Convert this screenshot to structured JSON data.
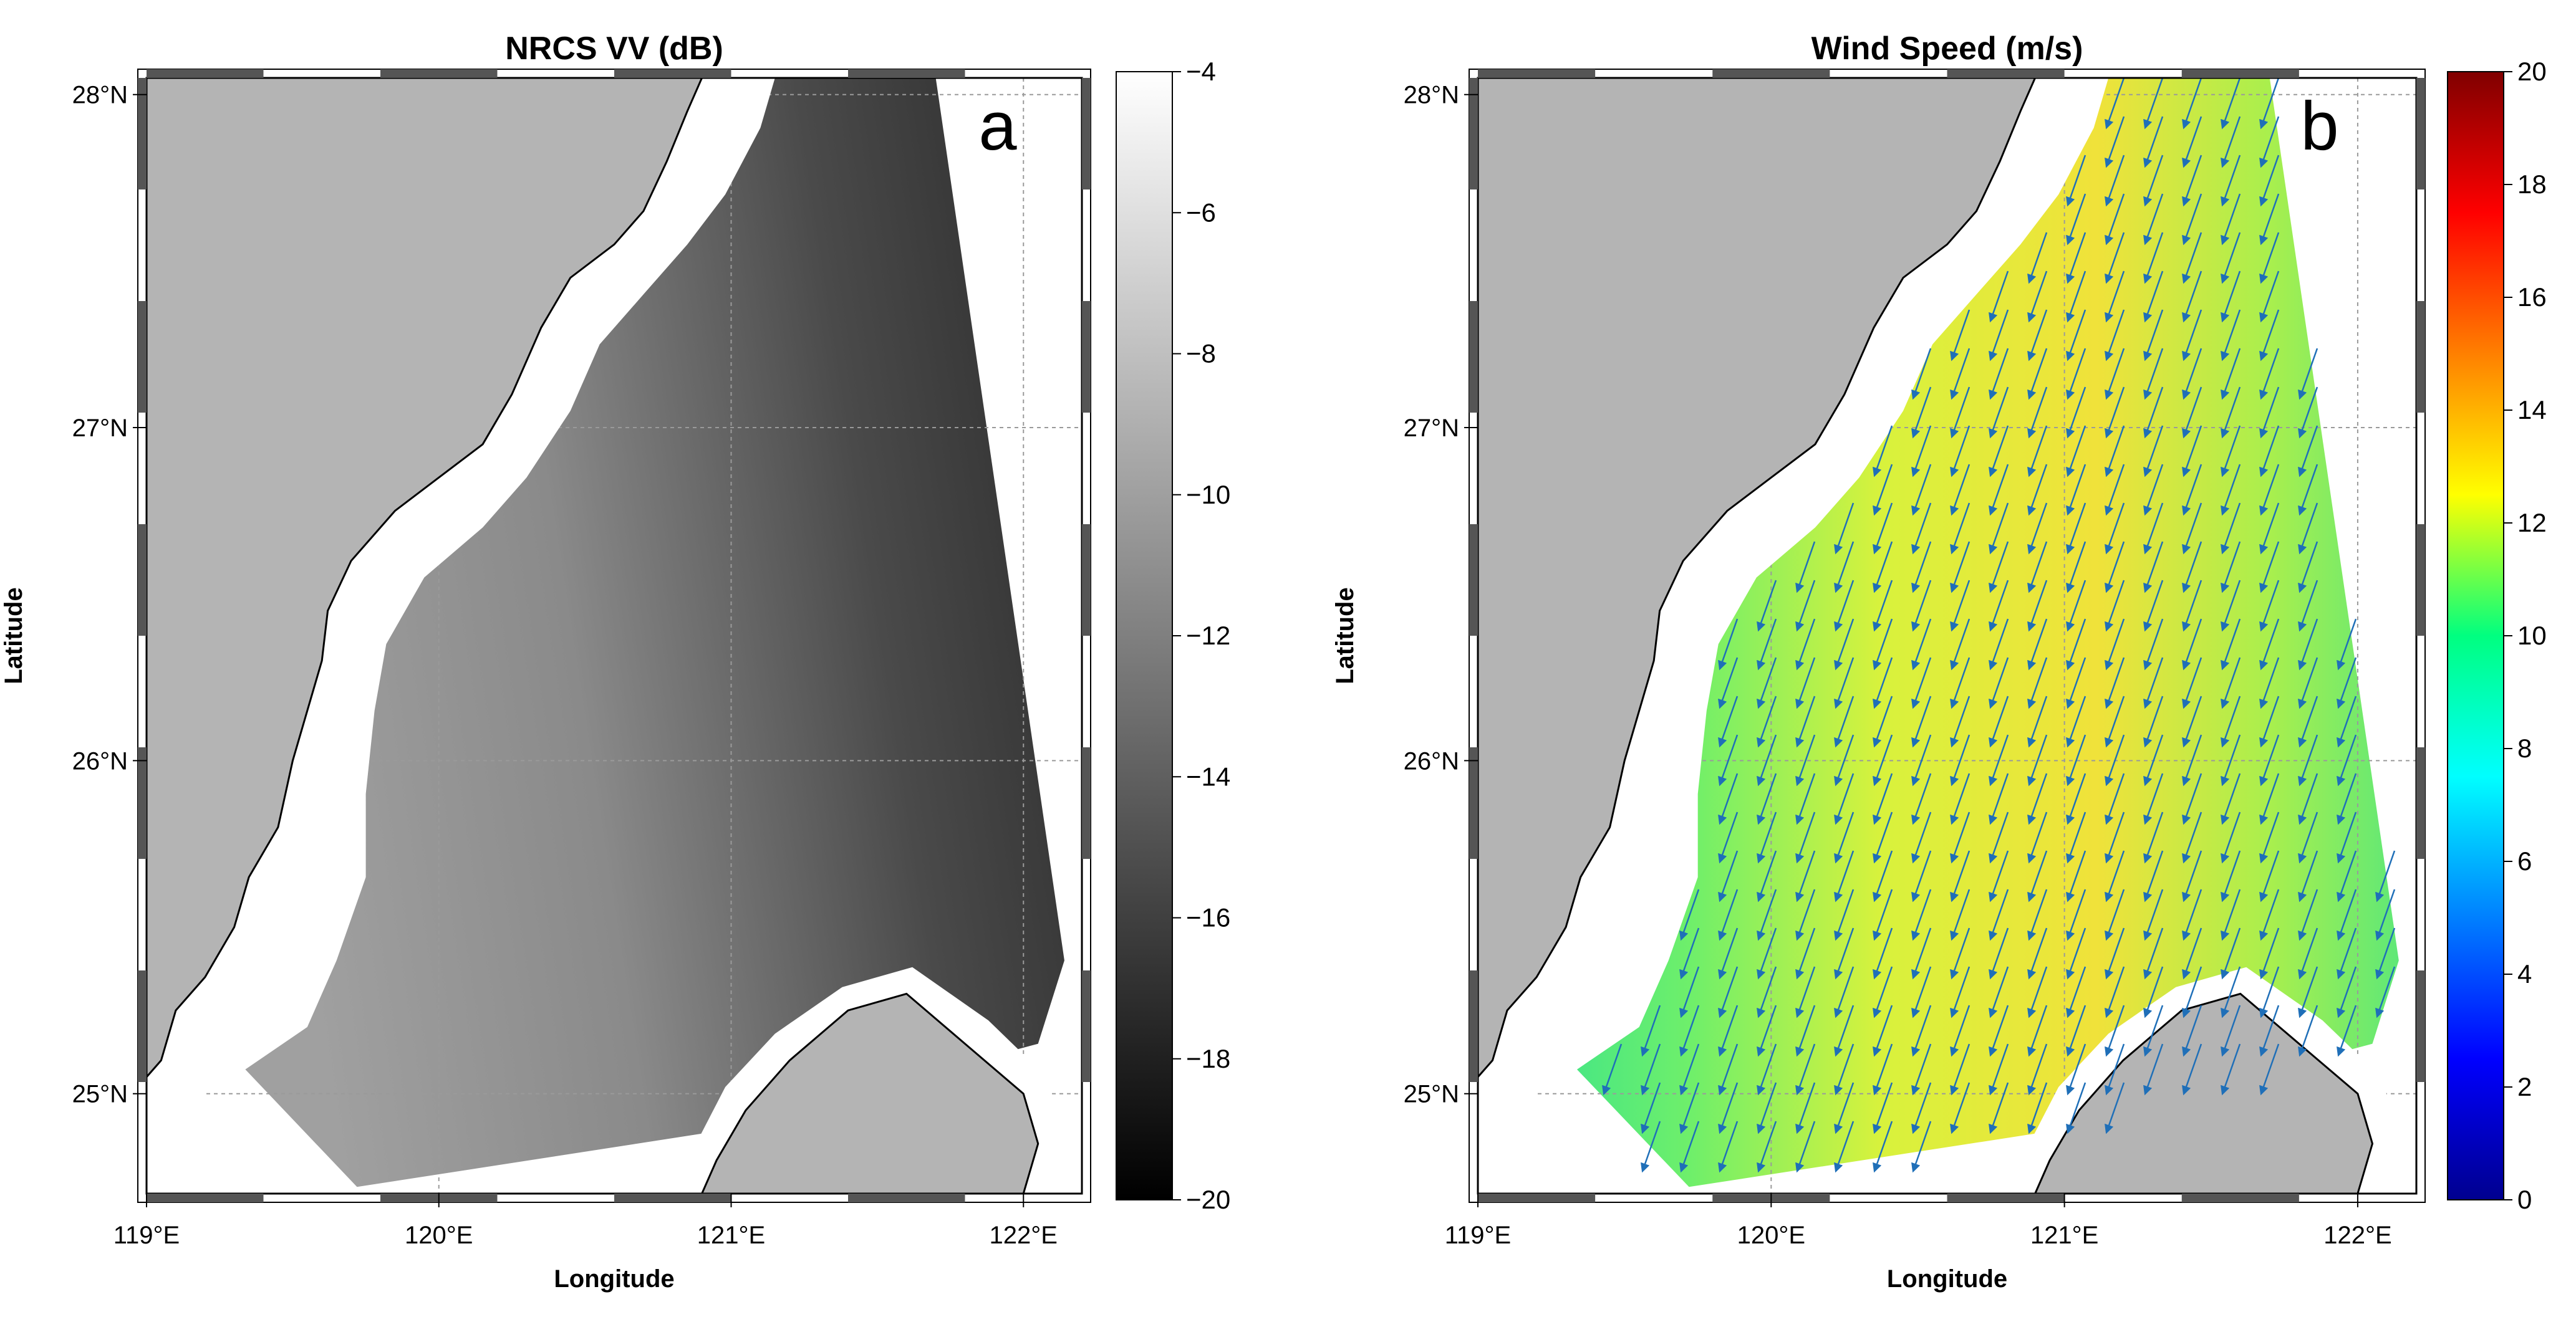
{
  "chart_data": [
    {
      "type": "heatmap",
      "panel_label": "a",
      "title": "NRCS VV (dB)",
      "xlabel": "Longitude",
      "ylabel": "Latitude",
      "xlim": [
        119.0,
        122.2
      ],
      "ylim": [
        24.7,
        28.05
      ],
      "xticks": [
        119,
        120,
        121,
        122
      ],
      "yticks": [
        25,
        26,
        27,
        28
      ],
      "xtick_labels": [
        "119°E",
        "120°E",
        "121°E",
        "122°E"
      ],
      "ytick_labels": [
        "25°N",
        "26°N",
        "27°N",
        "28°N"
      ],
      "grid": true,
      "colormap": "gray",
      "colorbar": {
        "min": -20,
        "max": -4,
        "ticks": [
          -4,
          -6,
          -8,
          -10,
          -12,
          -14,
          -16,
          -18,
          -20
        ],
        "tick_labels": [
          "−4",
          "−6",
          "−8",
          "−10",
          "−12",
          "−14",
          "−16",
          "−18",
          "−20"
        ]
      },
      "swath_polygon": [
        [
          119.72,
          24.72
        ],
        [
          120.9,
          24.88
        ],
        [
          122.05,
          25.15
        ],
        [
          122.14,
          25.4
        ],
        [
          121.7,
          28.05
        ],
        [
          119.2,
          28.05
        ],
        [
          119.2,
          25.2
        ]
      ],
      "value_range_in_swath": [
        -17,
        -8
      ]
    },
    {
      "type": "heatmap",
      "panel_label": "b",
      "title": "Wind Speed (m/s)",
      "xlabel": "Longitude",
      "ylabel": "Latitude",
      "xlim": [
        119.0,
        122.2
      ],
      "ylim": [
        24.7,
        28.05
      ],
      "xticks": [
        119,
        120,
        121,
        122
      ],
      "yticks": [
        25,
        26,
        27,
        28
      ],
      "xtick_labels": [
        "119°E",
        "120°E",
        "121°E",
        "122°E"
      ],
      "ytick_labels": [
        "25°N",
        "26°N",
        "27°N",
        "28°N"
      ],
      "grid": true,
      "colormap": "jet",
      "colorbar": {
        "min": 0,
        "max": 20,
        "ticks": [
          0,
          2,
          4,
          6,
          8,
          10,
          12,
          14,
          16,
          18,
          20
        ],
        "tick_labels": [
          "0",
          "2",
          "4",
          "6",
          "8",
          "10",
          "12",
          "14",
          "16",
          "18",
          "20"
        ]
      },
      "overlay": "wind-vectors",
      "vector_direction": "toward south-southwest",
      "vector_color": "#1f6fb8",
      "value_range_in_swath": [
        8,
        13
      ]
    }
  ],
  "colors": {
    "land": "#b4b4b4",
    "coast_buffer": "#ffffff",
    "coastline": "#000000",
    "background": "#ffffff"
  }
}
